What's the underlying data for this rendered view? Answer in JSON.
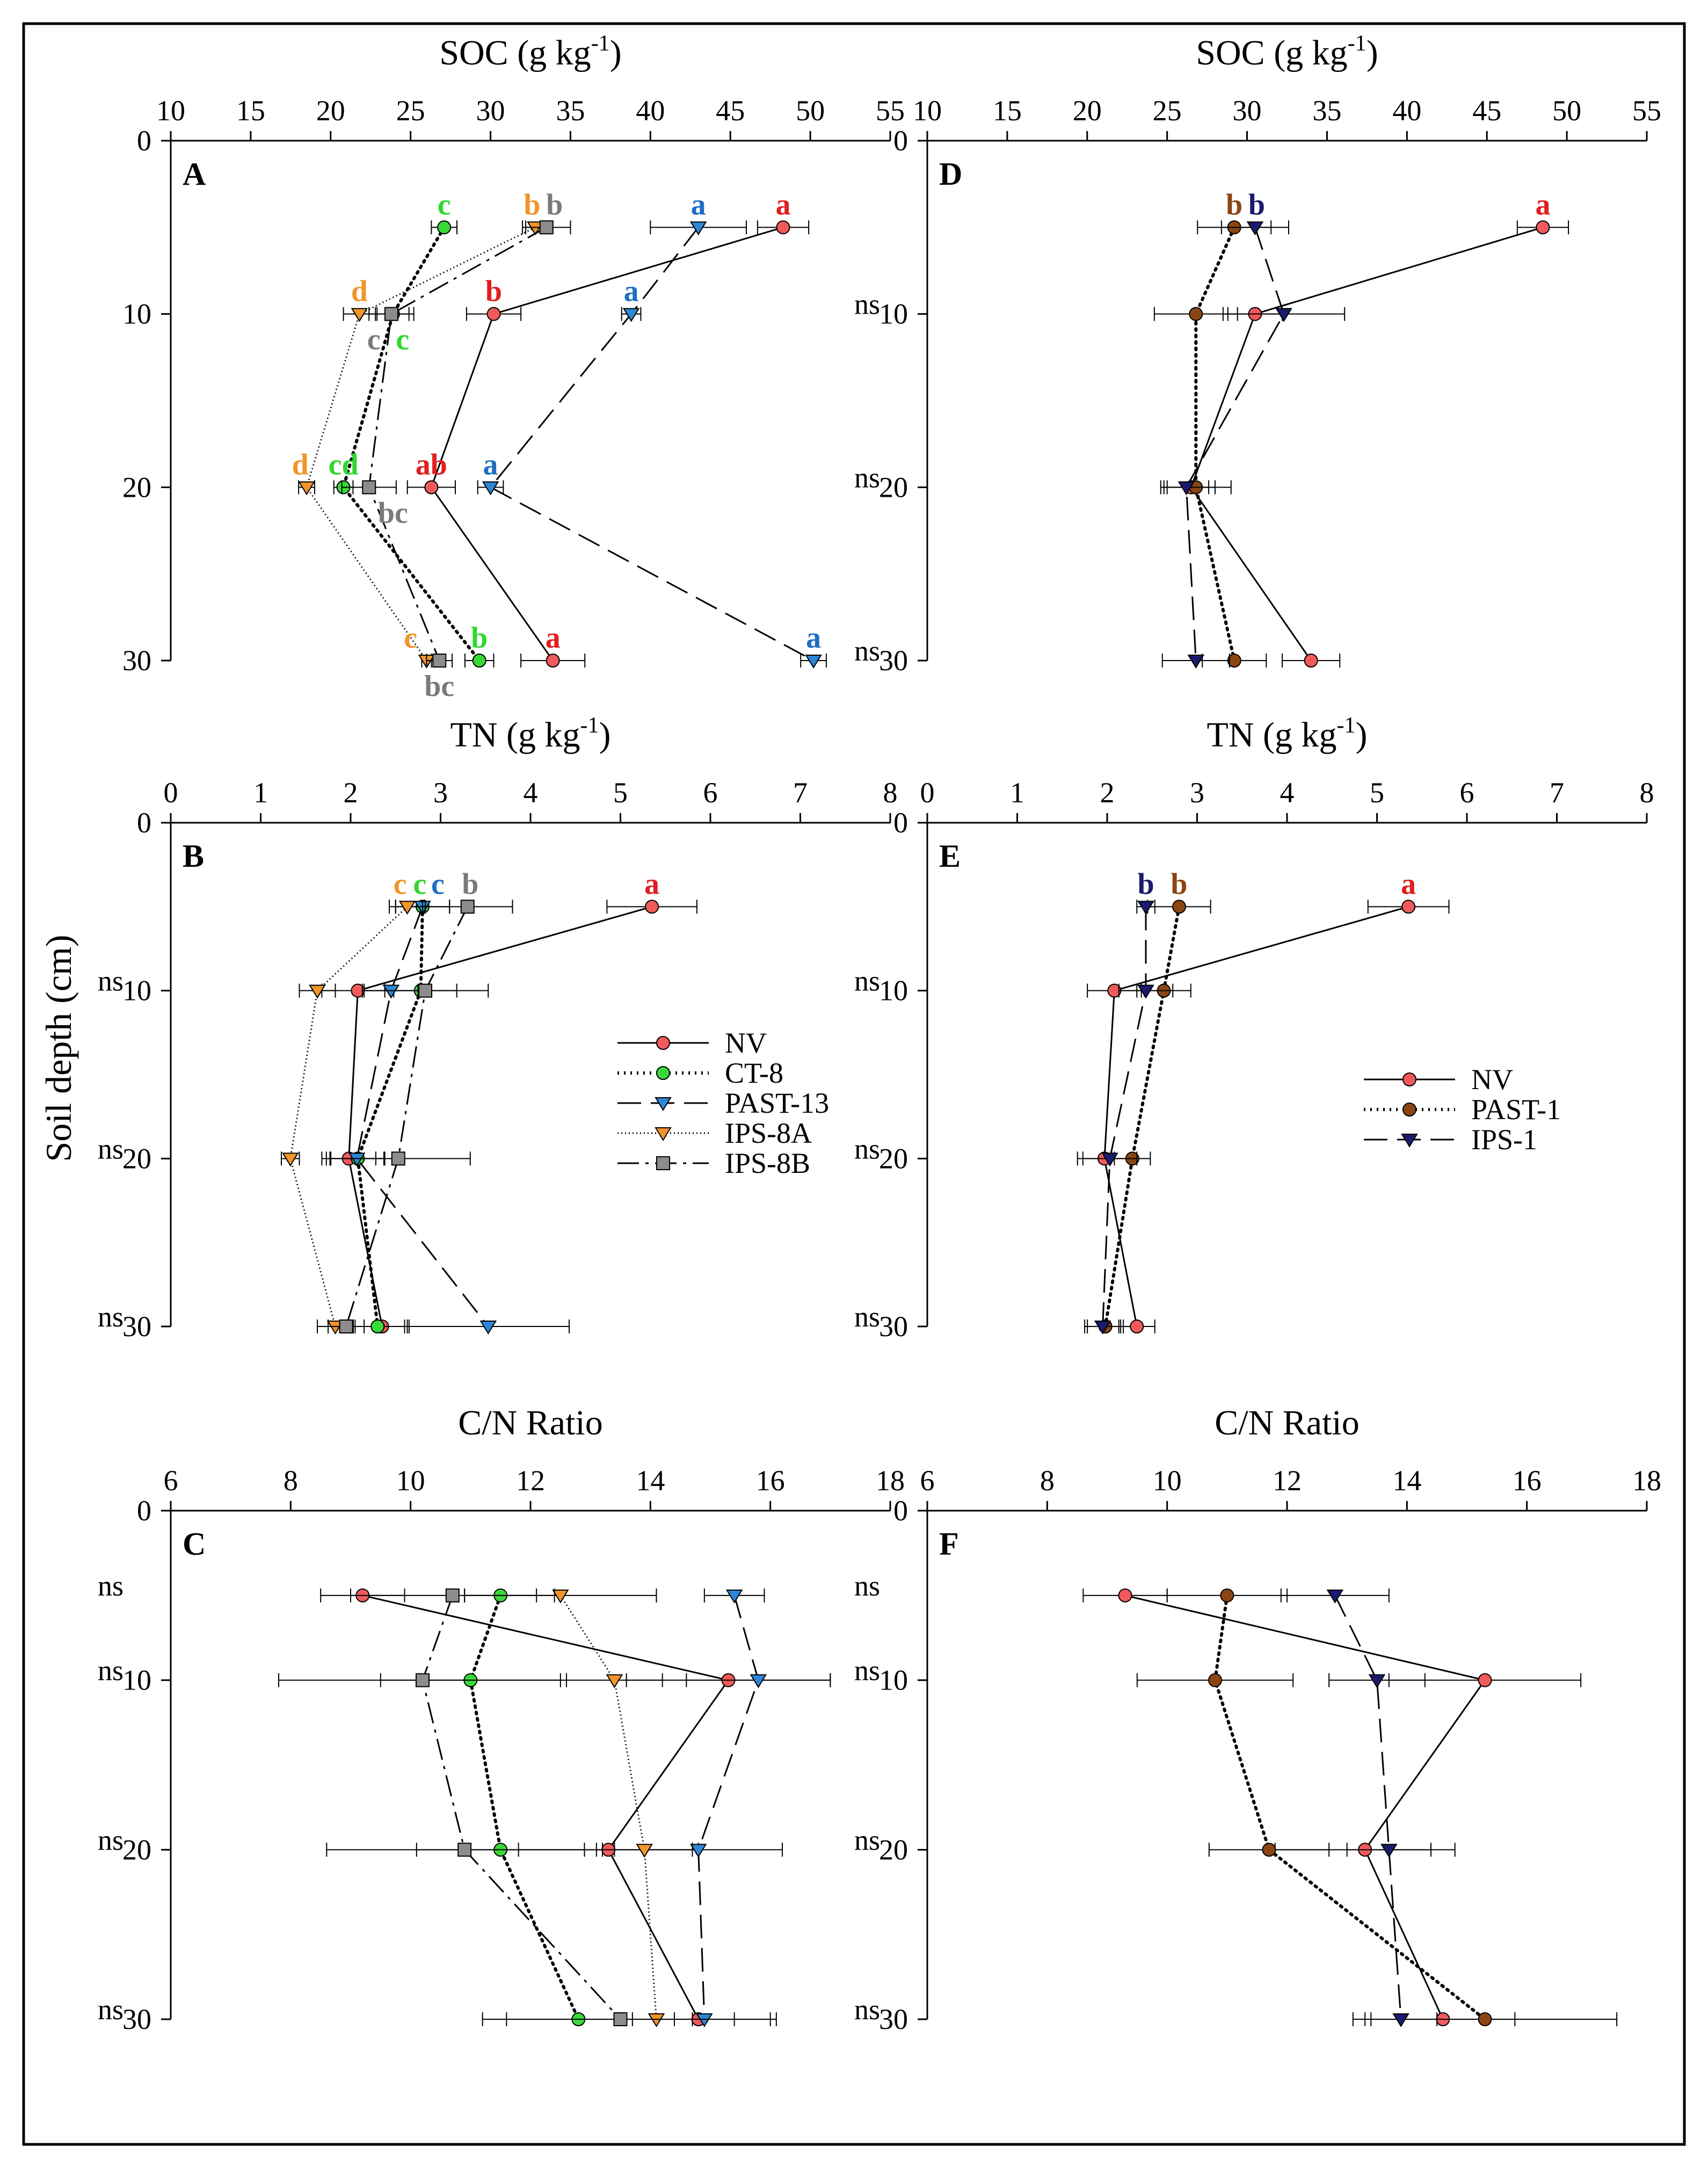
{
  "figure": {
    "ylabel": "Soil depth (cm)",
    "depths": [
      0,
      10,
      20,
      30
    ],
    "ylim": [
      0,
      30
    ]
  },
  "chart_data": [
    {
      "panel": "A",
      "type": "line",
      "title": "SOC (g kg⁻¹)",
      "xlim": [
        10,
        55
      ],
      "xticks": [
        10,
        15,
        20,
        25,
        30,
        35,
        40,
        45,
        50,
        55
      ],
      "ylim": [
        0,
        30
      ],
      "series": [
        {
          "name": "NV",
          "style": "solid",
          "marker": "circle",
          "color": "#f05a5a",
          "x": [
            48.3,
            30.2,
            26.3,
            33.9
          ],
          "y": [
            5,
            10,
            20,
            30
          ],
          "err": [
            1.6,
            1.7,
            1.5,
            2.0
          ]
        },
        {
          "name": "CT-8",
          "style": "dotted",
          "marker": "circle",
          "color": "#39d839",
          "x": [
            27.1,
            23.9,
            20.8,
            29.3
          ],
          "y": [
            5,
            10,
            20,
            30
          ],
          "err": [
            0.8,
            1.0,
            0.6,
            0.9
          ]
        },
        {
          "name": "PAST-13",
          "style": "dashed",
          "marker": "tri",
          "color": "#2d86d6",
          "x": [
            43.0,
            38.8,
            30.0,
            50.2
          ],
          "y": [
            5,
            10,
            20,
            30
          ],
          "err": [
            3.0,
            0.6,
            0.8,
            0.8
          ]
        },
        {
          "name": "IPS-8A",
          "style": "dense-dot",
          "marker": "tri",
          "color": "#f0952a",
          "x": [
            32.8,
            21.8,
            18.5,
            26.0
          ],
          "y": [
            5,
            10,
            20,
            30
          ],
          "err": [
            0.6,
            1.0,
            0.5,
            0.3
          ]
        },
        {
          "name": "IPS-8B",
          "style": "dashdot",
          "marker": "square",
          "color": "#8c8c8c",
          "x": [
            33.5,
            23.8,
            22.4,
            26.8
          ],
          "y": [
            5,
            10,
            20,
            30
          ],
          "err": [
            1.5,
            1.4,
            1.7,
            0.8
          ]
        }
      ],
      "letters": [
        {
          "text": "a",
          "x": 48.3,
          "y": 5,
          "pos": "above",
          "color": "#e01f1f"
        },
        {
          "text": "b",
          "x": 30.2,
          "y": 10,
          "pos": "above",
          "color": "#e01f1f"
        },
        {
          "text": "ab",
          "x": 26.3,
          "y": 20,
          "pos": "above",
          "color": "#e01f1f"
        },
        {
          "text": "a",
          "x": 33.9,
          "y": 30,
          "pos": "above",
          "color": "#e01f1f"
        },
        {
          "text": "c",
          "x": 27.1,
          "y": 5,
          "pos": "above",
          "color": "#2ed82e"
        },
        {
          "text": "c",
          "x": 24.5,
          "y": 10,
          "pos": "below",
          "color": "#2ed82e"
        },
        {
          "text": "cd",
          "x": 20.8,
          "y": 20,
          "pos": "above",
          "color": "#2ed82e"
        },
        {
          "text": "b",
          "x": 29.3,
          "y": 30,
          "pos": "above",
          "color": "#2ed82e"
        },
        {
          "text": "a",
          "x": 43.0,
          "y": 5,
          "pos": "above",
          "color": "#1f6fc2"
        },
        {
          "text": "a",
          "x": 38.8,
          "y": 10,
          "pos": "above",
          "color": "#1f6fc2"
        },
        {
          "text": "a",
          "x": 30.0,
          "y": 20,
          "pos": "above",
          "color": "#1f6fc2"
        },
        {
          "text": "a",
          "x": 50.2,
          "y": 30,
          "pos": "above",
          "color": "#1f6fc2"
        },
        {
          "text": "b",
          "x": 32.6,
          "y": 5,
          "pos": "above",
          "color": "#f0952a"
        },
        {
          "text": "d",
          "x": 21.8,
          "y": 10,
          "pos": "above",
          "color": "#f0952a"
        },
        {
          "text": "d",
          "x": 18.1,
          "y": 20,
          "pos": "above",
          "color": "#f0952a"
        },
        {
          "text": "c",
          "x": 25.0,
          "y": 30,
          "pos": "above",
          "color": "#f0952a"
        },
        {
          "text": "b",
          "x": 34.0,
          "y": 5,
          "pos": "above",
          "color": "#7a7a7a"
        },
        {
          "text": "c",
          "x": 22.7,
          "y": 10,
          "pos": "below",
          "color": "#7a7a7a"
        },
        {
          "text": "bc",
          "x": 23.9,
          "y": 20,
          "pos": "below",
          "color": "#7a7a7a"
        },
        {
          "text": "bc",
          "x": 26.8,
          "y": 30,
          "pos": "below",
          "color": "#7a7a7a"
        }
      ],
      "ns": []
    },
    {
      "panel": "D",
      "type": "line",
      "title": "SOC (g kg⁻¹)",
      "xlim": [
        10,
        55
      ],
      "xticks": [
        10,
        15,
        20,
        25,
        30,
        35,
        40,
        45,
        50,
        55
      ],
      "ylim": [
        0,
        30
      ],
      "series": [
        {
          "name": "NV",
          "style": "solid",
          "marker": "circle",
          "color": "#f05a5a",
          "x": [
            48.5,
            30.5,
            26.5,
            34.0
          ],
          "y": [
            5,
            10,
            20,
            30
          ],
          "err": [
            1.6,
            1.7,
            1.5,
            1.8
          ]
        },
        {
          "name": "PAST-1",
          "style": "dotted",
          "marker": "circle",
          "color": "#8b4513",
          "x": [
            29.2,
            26.8,
            26.8,
            29.2
          ],
          "y": [
            5,
            10,
            20,
            30
          ],
          "err": [
            2.3,
            2.6,
            2.2,
            2.0
          ]
        },
        {
          "name": "IPS-1",
          "style": "dashed",
          "marker": "tri",
          "color": "#1a1a6e",
          "x": [
            30.5,
            32.3,
            26.2,
            26.8
          ],
          "y": [
            5,
            10,
            20,
            30
          ],
          "err": [
            2.1,
            3.8,
            1.4,
            2.1
          ]
        }
      ],
      "letters": [
        {
          "text": "a",
          "x": 48.5,
          "y": 5,
          "pos": "above",
          "color": "#e01f1f"
        },
        {
          "text": "b",
          "x": 29.2,
          "y": 5,
          "pos": "above",
          "color": "#8b4513"
        },
        {
          "text": "b",
          "x": 30.6,
          "y": 5,
          "pos": "above",
          "color": "#1a1a6e"
        }
      ],
      "ns": [
        10,
        20,
        30
      ]
    },
    {
      "panel": "B",
      "type": "line",
      "title": "TN (g kg⁻¹)",
      "xlim": [
        0,
        8
      ],
      "xticks": [
        0,
        1,
        2,
        3,
        4,
        5,
        6,
        7,
        8
      ],
      "ylim": [
        0,
        30
      ],
      "series": [
        {
          "name": "NV",
          "style": "solid",
          "marker": "circle",
          "color": "#f05a5a",
          "x": [
            5.35,
            2.08,
            1.98,
            2.35
          ],
          "y": [
            5,
            10,
            20,
            30
          ],
          "err": [
            0.5,
            0.4,
            0.3,
            0.3
          ]
        },
        {
          "name": "CT-8",
          "style": "dotted",
          "marker": "circle",
          "color": "#39d839",
          "x": [
            2.8,
            2.78,
            2.08,
            2.3
          ],
          "y": [
            5,
            10,
            20,
            30
          ],
          "err": [
            0.3,
            0.4,
            0.3,
            0.3
          ]
        },
        {
          "name": "PAST-13",
          "style": "dashed",
          "marker": "tri",
          "color": "#2d86d6",
          "x": [
            2.8,
            2.45,
            2.07,
            3.53
          ],
          "y": [
            5,
            10,
            20,
            30
          ],
          "err": [
            0.3,
            0.3,
            0.3,
            0.9
          ]
        },
        {
          "name": "IPS-8A",
          "style": "dense-dot",
          "marker": "tri",
          "color": "#f0952a",
          "x": [
            2.63,
            1.63,
            1.33,
            1.83
          ],
          "y": [
            5,
            10,
            20,
            30
          ],
          "err": [
            0.2,
            0.2,
            0.1,
            0.2
          ]
        },
        {
          "name": "IPS-8B",
          "style": "dashdot",
          "marker": "square",
          "color": "#8c8c8c",
          "x": [
            3.3,
            2.83,
            2.53,
            1.95
          ],
          "y": [
            5,
            10,
            20,
            30
          ],
          "err": [
            0.5,
            0.7,
            0.8,
            0.2
          ]
        }
      ],
      "letters": [
        {
          "text": "a",
          "x": 5.35,
          "y": 5,
          "pos": "above",
          "color": "#e01f1f"
        },
        {
          "text": "c",
          "x": 2.55,
          "y": 5,
          "pos": "above",
          "color": "#f0952a"
        },
        {
          "text": "c",
          "x": 2.77,
          "y": 5,
          "pos": "above",
          "color": "#2ed82e"
        },
        {
          "text": "c",
          "x": 2.97,
          "y": 5,
          "pos": "above",
          "color": "#1f6fc2"
        },
        {
          "text": "b",
          "x": 3.33,
          "y": 5,
          "pos": "above",
          "color": "#7a7a7a"
        }
      ],
      "ns": [
        10,
        20,
        30
      ],
      "legend": [
        "NV",
        "CT-8",
        "PAST-13",
        "IPS-8A",
        "IPS-8B"
      ]
    },
    {
      "panel": "E",
      "type": "line",
      "title": "TN (g kg⁻¹)",
      "xlim": [
        0,
        8
      ],
      "xticks": [
        0,
        1,
        2,
        3,
        4,
        5,
        6,
        7,
        8
      ],
      "ylim": [
        0,
        30
      ],
      "series": [
        {
          "name": "NV",
          "style": "solid",
          "marker": "circle",
          "color": "#f05a5a",
          "x": [
            5.35,
            2.08,
            1.97,
            2.33
          ],
          "y": [
            5,
            10,
            20,
            30
          ],
          "err": [
            0.45,
            0.3,
            0.3,
            0.2
          ]
        },
        {
          "name": "PAST-1",
          "style": "dotted",
          "marker": "circle",
          "color": "#8b4513",
          "x": [
            2.8,
            2.63,
            2.28,
            1.98
          ],
          "y": [
            5,
            10,
            20,
            30
          ],
          "err": [
            0.35,
            0.3,
            0.2,
            0.2
          ]
        },
        {
          "name": "IPS-1",
          "style": "dashed",
          "marker": "tri",
          "color": "#1a1a6e",
          "x": [
            2.43,
            2.43,
            2.03,
            1.95
          ],
          "y": [
            5,
            10,
            20,
            30
          ],
          "err": [
            0.1,
            0.3,
            0.3,
            0.2
          ]
        }
      ],
      "letters": [
        {
          "text": "a",
          "x": 5.35,
          "y": 5,
          "pos": "above",
          "color": "#e01f1f"
        },
        {
          "text": "b",
          "x": 2.43,
          "y": 5,
          "pos": "above",
          "color": "#1a1a6e"
        },
        {
          "text": "b",
          "x": 2.8,
          "y": 5,
          "pos": "above",
          "color": "#8b4513"
        }
      ],
      "ns": [
        10,
        20,
        30
      ],
      "legend": [
        "NV",
        "PAST-1",
        "IPS-1"
      ]
    },
    {
      "panel": "C",
      "type": "line",
      "title": "C/N Ratio",
      "xlim": [
        6,
        18
      ],
      "xticks": [
        6,
        8,
        10,
        12,
        14,
        16,
        18
      ],
      "ylim": [
        0,
        30
      ],
      "series": [
        {
          "name": "NV",
          "style": "solid",
          "marker": "circle",
          "color": "#f05a5a",
          "x": [
            9.2,
            15.3,
            13.3,
            14.8
          ],
          "y": [
            5,
            10,
            20,
            30
          ],
          "err": [
            0.7,
            1.7,
            1.5,
            1.2
          ]
        },
        {
          "name": "CT-8",
          "style": "dotted",
          "marker": "circle",
          "color": "#39d839",
          "x": [
            11.5,
            11.0,
            11.5,
            12.8
          ],
          "y": [
            5,
            10,
            20,
            30
          ],
          "err": [
            0.6,
            1.5,
            1.4,
            1.6
          ]
        },
        {
          "name": "PAST-13",
          "style": "dashed",
          "marker": "tri",
          "color": "#2d86d6",
          "x": [
            15.4,
            15.8,
            14.8,
            14.9
          ],
          "y": [
            5,
            10,
            20,
            30
          ],
          "err": [
            0.5,
            1.2,
            1.4,
            1.2
          ]
        },
        {
          "name": "IPS-8A",
          "style": "dense-dot",
          "marker": "tri",
          "color": "#f0952a",
          "x": [
            12.5,
            13.4,
            13.9,
            14.1
          ],
          "y": [
            5,
            10,
            20,
            30
          ],
          "err": [
            1.6,
            0.8,
            0.8,
            0.6
          ]
        },
        {
          "name": "IPS-8B",
          "style": "dashdot",
          "marker": "square",
          "color": "#8c8c8c",
          "x": [
            10.7,
            10.2,
            10.9,
            13.5
          ],
          "y": [
            5,
            10,
            20,
            30
          ],
          "err": [
            1.7,
            2.4,
            2.3,
            1.9
          ]
        }
      ],
      "letters": [],
      "ns": [
        5,
        10,
        20,
        30
      ]
    },
    {
      "panel": "F",
      "type": "line",
      "title": "C/N Ratio",
      "xlim": [
        6,
        18
      ],
      "xticks": [
        6,
        8,
        10,
        12,
        14,
        16,
        18
      ],
      "ylim": [
        0,
        30
      ],
      "series": [
        {
          "name": "NV",
          "style": "solid",
          "marker": "circle",
          "color": "#f05a5a",
          "x": [
            9.3,
            15.3,
            13.3,
            14.6
          ],
          "y": [
            5,
            10,
            20,
            30
          ],
          "err": [
            0.7,
            1.6,
            1.5,
            1.2
          ]
        },
        {
          "name": "PAST-1",
          "style": "dotted",
          "marker": "circle",
          "color": "#8b4513",
          "x": [
            11.0,
            10.8,
            11.7,
            15.3
          ],
          "y": [
            5,
            10,
            20,
            30
          ],
          "err": [
            1.0,
            1.3,
            1.0,
            2.2
          ]
        },
        {
          "name": "IPS-1",
          "style": "dashed",
          "marker": "tri",
          "color": "#1a1a6e",
          "x": [
            12.8,
            13.5,
            13.7,
            13.9
          ],
          "y": [
            5,
            10,
            20,
            30
          ],
          "err": [
            0.9,
            0.8,
            0.7,
            0.6
          ]
        }
      ],
      "letters": [],
      "ns": [
        5,
        10,
        20,
        30
      ]
    }
  ]
}
